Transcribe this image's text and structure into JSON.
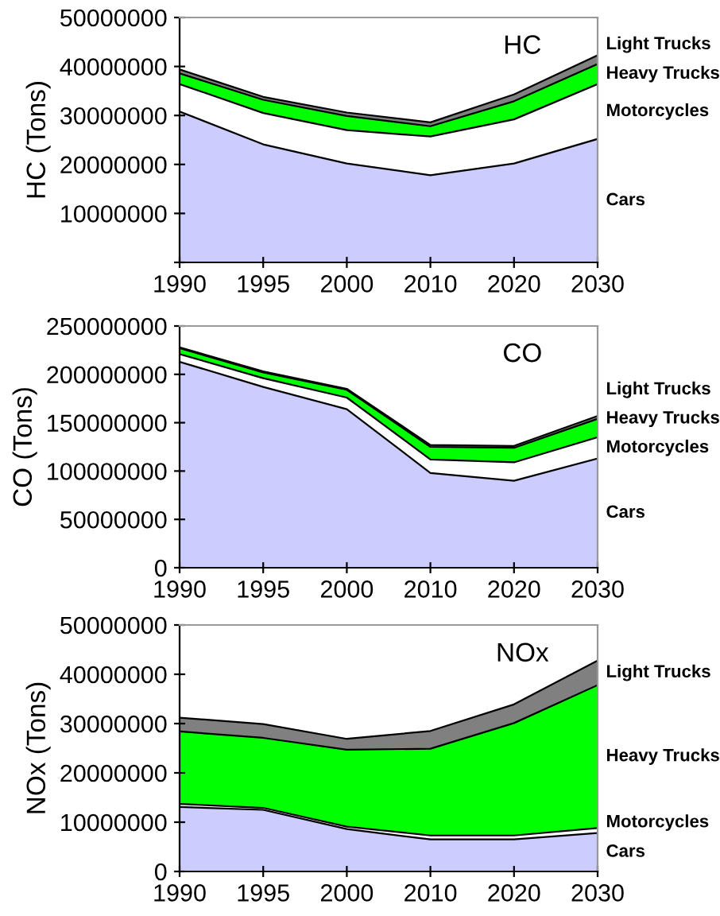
{
  "chart_data": [
    {
      "type": "area",
      "stacked": true,
      "title": "HC",
      "ylabel": "HC (Tons)",
      "categories": [
        "1990",
        "1995",
        "2000",
        "2010",
        "2020",
        "2030"
      ],
      "ylim": [
        0,
        50000000
      ],
      "yticks": [
        {
          "value": 0,
          "label": null
        },
        10000000,
        20000000,
        30000000,
        40000000,
        50000000
      ],
      "grid": false,
      "series": [
        {
          "name": "Cars",
          "color": "#ccccff",
          "values": [
            30800000,
            24100000,
            20200000,
            17800000,
            20200000,
            25200000
          ]
        },
        {
          "name": "Motorcycles",
          "color": "#ffffff",
          "values": [
            5600000,
            6400000,
            6800000,
            7900000,
            9000000,
            11200000
          ]
        },
        {
          "name": "Heavy Trucks",
          "color": "#00ff00",
          "values": [
            2200000,
            2700000,
            2900000,
            2100000,
            3700000,
            4100000
          ]
        },
        {
          "name": "Light Trucks",
          "color": "#808080",
          "values": [
            800000,
            600000,
            700000,
            800000,
            1400000,
            1800000
          ]
        }
      ]
    },
    {
      "type": "area",
      "stacked": true,
      "title": "CO",
      "ylabel": "CO (Tons)",
      "categories": [
        "1990",
        "1995",
        "2000",
        "2010",
        "2020",
        "2030"
      ],
      "ylim": [
        0,
        250000000
      ],
      "yticks": [
        0,
        50000000,
        100000000,
        150000000,
        200000000,
        250000000
      ],
      "grid": false,
      "series": [
        {
          "name": "Cars",
          "color": "#ccccff",
          "values": [
            213000000,
            187000000,
            164000000,
            98000000,
            90000000,
            113000000
          ]
        },
        {
          "name": "Motorcycles",
          "color": "#ffffff",
          "values": [
            8000000,
            9000000,
            12000000,
            14000000,
            19000000,
            22000000
          ]
        },
        {
          "name": "Heavy Trucks",
          "color": "#00ff00",
          "values": [
            6000000,
            6000000,
            8000000,
            13000000,
            15000000,
            19000000
          ]
        },
        {
          "name": "Light Trucks",
          "color": "#808080",
          "values": [
            1000000,
            1000000,
            1000000,
            2000000,
            2000000,
            3000000
          ]
        }
      ]
    },
    {
      "type": "area",
      "stacked": true,
      "title": "NOx",
      "ylabel": "NOx (Tons)",
      "categories": [
        "1990",
        "1995",
        "2000",
        "2010",
        "2020",
        "2030"
      ],
      "ylim": [
        0,
        50000000
      ],
      "yticks": [
        0,
        10000000,
        20000000,
        30000000,
        40000000,
        50000000
      ],
      "grid": false,
      "series": [
        {
          "name": "Cars",
          "color": "#ccccff",
          "values": [
            13100000,
            12500000,
            8600000,
            6500000,
            6500000,
            7800000
          ]
        },
        {
          "name": "Motorcycles",
          "color": "#ffffff",
          "values": [
            600000,
            400000,
            500000,
            800000,
            800000,
            1000000
          ]
        },
        {
          "name": "Heavy Trucks",
          "color": "#00ff00",
          "values": [
            14700000,
            14200000,
            15600000,
            17600000,
            22800000,
            29000000
          ]
        },
        {
          "name": "Light Trucks",
          "color": "#808080",
          "values": [
            2800000,
            2800000,
            2200000,
            3600000,
            3800000,
            5000000
          ]
        }
      ]
    }
  ]
}
